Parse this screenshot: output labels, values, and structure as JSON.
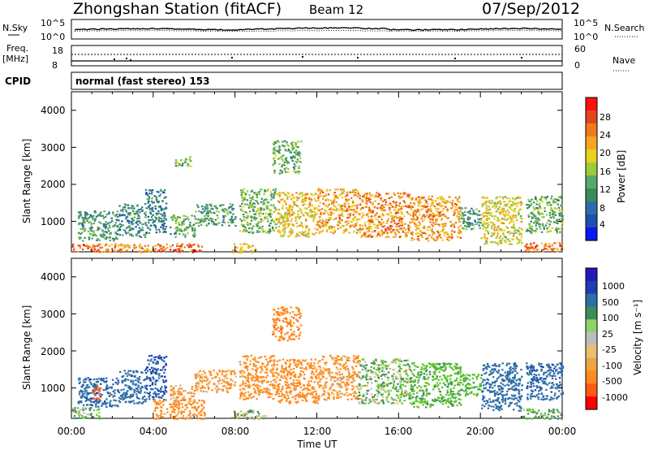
{
  "header": {
    "station": "Zhongshan Station (fitACF)",
    "beam": "Beam 12",
    "date": "07/Sep/2012"
  },
  "strips": {
    "nsky_label": "N.Sky",
    "nsearch_label": "N.Search",
    "noise_ticks": [
      "10^5",
      "10^0"
    ],
    "freq_label": "Freq.",
    "freq_unit": "[MHz]",
    "freq_ticks": [
      "18",
      "8"
    ],
    "nave_label": "Nave",
    "nave_ticks": [
      "60",
      "0"
    ],
    "cpid_label": "CPID",
    "cpid_value": "normal (fast stereo) 153"
  },
  "colors": {
    "bar_scale": [
      "#0a19f0",
      "#1f4fae",
      "#2e6ea8",
      "#3b8a5a",
      "#56a96a",
      "#9ccc3c",
      "#e8d21a",
      "#f6a623",
      "#f07a1a",
      "#e5451c",
      "#ff1010"
    ],
    "vel_scale": [
      "#ff0000",
      "#ff5a14",
      "#ff8a1e",
      "#f0a440",
      "#e8c070",
      "#bdbdbd",
      "#8ed26a",
      "#5cc42a",
      "#3d8c5a",
      "#2e6ea8",
      "#1b3fb0",
      "#2418b8"
    ],
    "ground_scatter": "#8a8a8a"
  },
  "chart_data": [
    {
      "type": "heatmap",
      "panel": "power",
      "x_axis": {
        "label": "Time UT",
        "ticks": [
          "00:00",
          "04:00",
          "08:00",
          "12:00",
          "16:00",
          "20:00",
          "00:00"
        ],
        "range_hours": [
          0,
          24
        ]
      },
      "y_axis": {
        "label": "Slant Range [km]",
        "ticks": [
          "1000",
          "2000",
          "3000",
          "4000"
        ],
        "range_km": [
          180,
          4500
        ]
      },
      "colorbar": {
        "label": "Power [dB]",
        "ticks": [
          "4",
          "8",
          "12",
          "16",
          "20",
          "24",
          "28"
        ],
        "range": [
          0,
          30
        ]
      },
      "regions": [
        {
          "t": [
            0.0,
            1.3
          ],
          "r": [
            180,
            420
          ],
          "v": 26
        },
        {
          "t": [
            0.3,
            2.3
          ],
          "r": [
            500,
            1300
          ],
          "v": 10
        },
        {
          "t": [
            1.2,
            4.2
          ],
          "r": [
            180,
            420
          ],
          "v": 22
        },
        {
          "t": [
            2.3,
            3.6
          ],
          "r": [
            600,
            1500
          ],
          "v": 9
        },
        {
          "t": [
            3.6,
            4.6
          ],
          "r": [
            700,
            1900
          ],
          "v": 7
        },
        {
          "t": [
            4.2,
            6.5
          ],
          "r": [
            180,
            420
          ],
          "v": 25
        },
        {
          "t": [
            4.8,
            6.0
          ],
          "r": [
            600,
            1200
          ],
          "v": 12
        },
        {
          "t": [
            5.0,
            5.8
          ],
          "r": [
            2500,
            2800
          ],
          "v": 14
        },
        {
          "t": [
            6.0,
            8.0
          ],
          "r": [
            900,
            1500
          ],
          "v": 11
        },
        {
          "t": [
            7.8,
            9.0
          ],
          "r": [
            180,
            420
          ],
          "v": 20
        },
        {
          "t": [
            8.2,
            10.0
          ],
          "r": [
            700,
            1900
          ],
          "v": 13
        },
        {
          "t": [
            9.8,
            11.2
          ],
          "r": [
            2300,
            3200
          ],
          "v": 12
        },
        {
          "t": [
            10.0,
            12.0
          ],
          "r": [
            600,
            1800
          ],
          "v": 19
        },
        {
          "t": [
            12.0,
            14.0
          ],
          "r": [
            700,
            1900
          ],
          "v": 21
        },
        {
          "t": [
            14.0,
            16.5
          ],
          "r": [
            600,
            1800
          ],
          "v": 23
        },
        {
          "t": [
            16.5,
            19.0
          ],
          "r": [
            500,
            1700
          ],
          "v": 22
        },
        {
          "t": [
            19.0,
            20.0
          ],
          "r": [
            800,
            1400
          ],
          "v": 10
        },
        {
          "t": [
            20.0,
            22.0
          ],
          "r": [
            400,
            1700
          ],
          "v": 18
        },
        {
          "t": [
            22.0,
            24.0
          ],
          "r": [
            180,
            450
          ],
          "v": 24
        },
        {
          "t": [
            22.2,
            24.0
          ],
          "r": [
            700,
            1700
          ],
          "v": 12
        }
      ]
    },
    {
      "type": "heatmap",
      "panel": "velocity",
      "x_axis": {
        "label": "Time UT",
        "ticks": [
          "00:00",
          "04:00",
          "08:00",
          "12:00",
          "16:00",
          "20:00",
          "00:00"
        ],
        "range_hours": [
          0,
          24
        ]
      },
      "y_axis": {
        "label": "Slant Range [km]",
        "ticks": [
          "1000",
          "2000",
          "3000",
          "4000"
        ],
        "range_km": [
          180,
          4500
        ]
      },
      "colorbar": {
        "label": "Velocity [m s⁻¹]",
        "ticks": [
          "1000",
          "500",
          "100",
          "25",
          "-25",
          "-100",
          "-500",
          "-1000"
        ],
        "range": [
          -1000,
          1000
        ]
      },
      "regions": [
        {
          "t": [
            0.0,
            1.4
          ],
          "r": [
            180,
            500
          ],
          "v": 120
        },
        {
          "t": [
            0.3,
            2.3
          ],
          "r": [
            500,
            1300
          ],
          "v": 700
        },
        {
          "t": [
            1.0,
            1.4
          ],
          "r": [
            700,
            1100
          ],
          "v": -600
        },
        {
          "t": [
            2.3,
            3.6
          ],
          "r": [
            600,
            1500
          ],
          "v": 600
        },
        {
          "t": [
            3.6,
            4.6
          ],
          "r": [
            700,
            1900
          ],
          "v": 800
        },
        {
          "t": [
            4.0,
            6.5
          ],
          "r": [
            180,
            700
          ],
          "v": -250
        },
        {
          "t": [
            4.8,
            6.0
          ],
          "r": [
            600,
            1100
          ],
          "v": -150
        },
        {
          "t": [
            6.0,
            8.0
          ],
          "r": [
            900,
            1500
          ],
          "v": -150
        },
        {
          "t": [
            7.8,
            9.5
          ],
          "r": [
            180,
            420
          ],
          "v": 0
        },
        {
          "t": [
            8.2,
            10.0
          ],
          "r": [
            700,
            1900
          ],
          "v": -200
        },
        {
          "t": [
            9.8,
            11.2
          ],
          "r": [
            2300,
            3200
          ],
          "v": -300
        },
        {
          "t": [
            10.0,
            12.0
          ],
          "r": [
            600,
            1800
          ],
          "v": -250
        },
        {
          "t": [
            12.0,
            14.0
          ],
          "r": [
            700,
            1900
          ],
          "v": -150
        },
        {
          "t": [
            14.0,
            16.5
          ],
          "r": [
            600,
            1800
          ],
          "v": 80
        },
        {
          "t": [
            16.5,
            19.0
          ],
          "r": [
            500,
            1700
          ],
          "v": 220
        },
        {
          "t": [
            19.0,
            20.0
          ],
          "r": [
            800,
            1400
          ],
          "v": 200
        },
        {
          "t": [
            20.0,
            22.0
          ],
          "r": [
            400,
            1700
          ],
          "v": 600
        },
        {
          "t": [
            22.0,
            24.0
          ],
          "r": [
            180,
            450
          ],
          "v": 120
        },
        {
          "t": [
            22.2,
            24.0
          ],
          "r": [
            700,
            1700
          ],
          "v": 700
        }
      ]
    }
  ]
}
